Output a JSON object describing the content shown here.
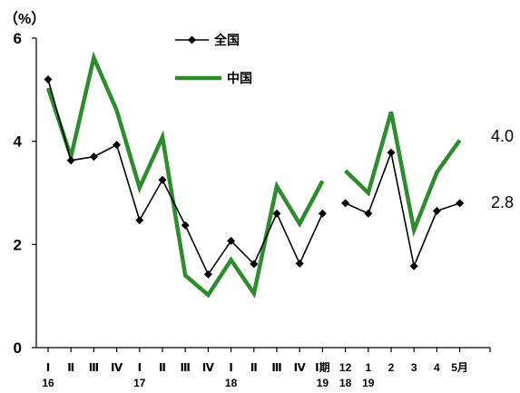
{
  "chart_data": {
    "type": "line",
    "unit_label": "（%）",
    "ylim": [
      0,
      6
    ],
    "y_ticks": [
      "0",
      "2",
      "4",
      "6"
    ],
    "grid": false,
    "legend_position": "top-center",
    "categories": [
      "Ⅰ",
      "Ⅱ",
      "Ⅲ",
      "Ⅳ",
      "Ⅰ",
      "Ⅱ",
      "Ⅲ",
      "Ⅳ",
      "Ⅰ",
      "Ⅱ",
      "Ⅲ",
      "Ⅳ",
      "Ⅰ期",
      "12",
      "1",
      "2",
      "3",
      "4",
      "5月"
    ],
    "year_labels": [
      {
        "label": "16",
        "category_index": 0
      },
      {
        "label": "17",
        "category_index": 4
      },
      {
        "label": "18",
        "category_index": 8
      },
      {
        "label": "19",
        "category_index": 12
      },
      {
        "label": "18",
        "category_index": 13
      },
      {
        "label": "19",
        "category_index": 14
      }
    ],
    "segments": [
      [
        0,
        12
      ],
      [
        13,
        18
      ]
    ],
    "series": [
      {
        "name": "全国",
        "color": "#000000",
        "marker": "diamond",
        "values": [
          5.2,
          3.63,
          3.7,
          3.93,
          2.47,
          3.25,
          2.37,
          1.42,
          2.07,
          1.62,
          2.6,
          1.63,
          2.6,
          2.8,
          2.6,
          3.78,
          1.58,
          2.65,
          2.8
        ]
      },
      {
        "name": "中国",
        "color": "#2e8b2e",
        "marker": "none",
        "values": [
          5.03,
          3.7,
          5.62,
          4.6,
          3.1,
          4.08,
          1.4,
          1.02,
          1.7,
          1.05,
          3.13,
          2.4,
          3.23,
          3.43,
          3.0,
          4.57,
          2.28,
          3.4,
          4.02
        ]
      }
    ],
    "end_labels": [
      {
        "series": "中国",
        "text": "4.0"
      },
      {
        "series": "全国",
        "text": "2.8"
      }
    ]
  }
}
